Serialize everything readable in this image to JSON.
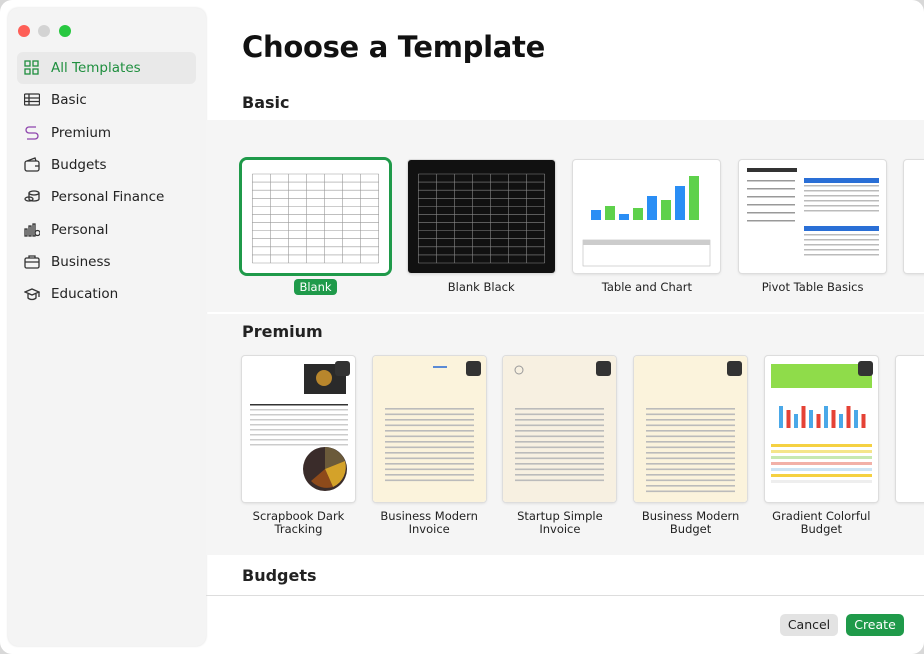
{
  "header": {
    "title": "Choose a Template"
  },
  "sidebar": {
    "items": [
      "All Templates",
      "Basic",
      "Premium",
      "Budgets",
      "Personal Finance",
      "Personal",
      "Business",
      "Education"
    ]
  },
  "sections": [
    {
      "title": "Basic",
      "templates": [
        "Blank",
        "Blank Black",
        "Table and Chart",
        "Pivot Table Basics"
      ]
    },
    {
      "title": "Premium",
      "templates": [
        "Scrapbook Dark Tracking",
        "Business Modern Invoice",
        "Startup Simple Invoice",
        "Business Modern Budget",
        "Gradient Colorful Budget"
      ]
    },
    {
      "title": "Budgets"
    }
  ],
  "buttons": {
    "cancel": "Cancel",
    "create": "Create"
  }
}
